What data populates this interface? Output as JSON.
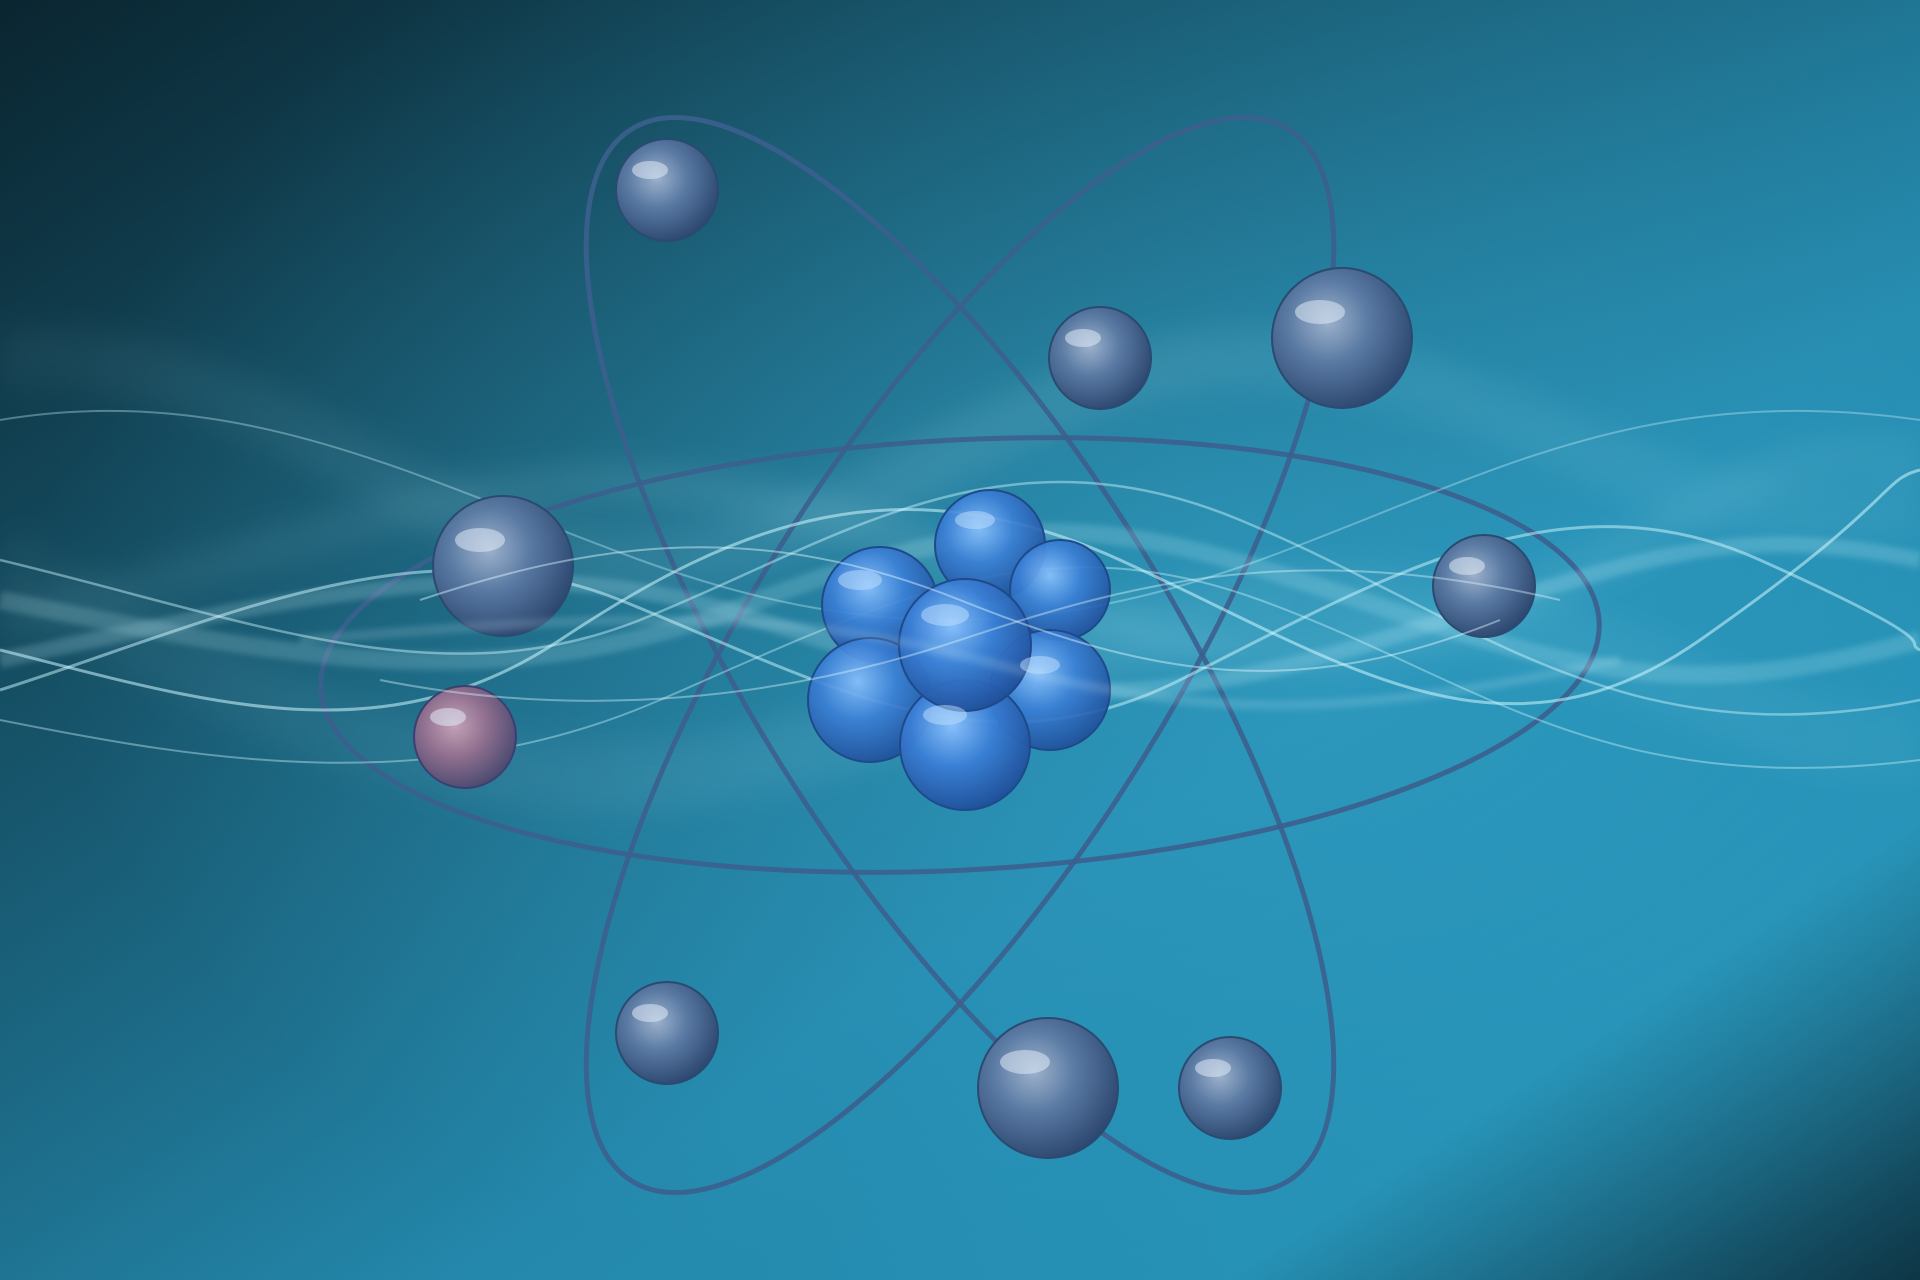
{
  "artwork": {
    "subject": "atom",
    "colors": {
      "background_dark": "#0b2a36",
      "background_mid": "#1c6f8c",
      "background_light": "#2a9ac0",
      "orbit_stroke": "#3a5f8f",
      "electron": "#4f6f98",
      "electron_highlight": "#c8d8ea",
      "nucleus": "#2f6bc4",
      "nucleus_highlight": "#8fc4ff",
      "wave": "#9fe6ff"
    }
  }
}
